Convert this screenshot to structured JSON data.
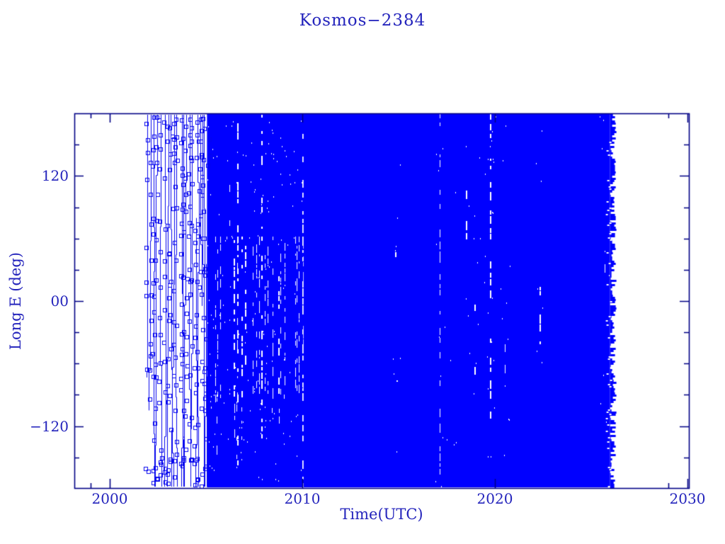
{
  "page": {
    "background": "#ffffff"
  },
  "chart_data": {
    "type": "scatter",
    "title": "Kosmos−2384",
    "xlabel": "Time(UTC)",
    "ylabel": "Long E (deg)",
    "description": "Sub-satellite longitude (deg E) versus time for Kosmos-2384; dense vertical coverage of all longitudes −180..180 from drifting orbit, plotted as small open-square markers that merge into a solid mass.",
    "marker": "open-square",
    "colors": {
      "data": "#0000ff",
      "track": "#0404ee",
      "axis": "#000085",
      "text": "#2424bc",
      "background": "#ffffff"
    },
    "x_axis": {
      "range": [
        1998.2,
        2030.1
      ],
      "major_ticks": [
        2000,
        2010,
        2020,
        2030
      ],
      "tick_labels": [
        "2000",
        "2010",
        "2020",
        "2030"
      ],
      "minor_ticks": [
        1999,
        2029
      ],
      "grid": false
    },
    "y_axis": {
      "range": [
        -180,
        180
      ],
      "major_ticks": [
        120,
        0,
        -120
      ],
      "tick_labels": [
        "120",
        "00",
        "−120"
      ],
      "minor_ticks": [
        150,
        90,
        60,
        30,
        -30,
        -60,
        -90,
        -150
      ],
      "grid": false
    },
    "coverage_eras": [
      {
        "name": "sparse-drift-tracks",
        "t_start": 2001.95,
        "t_end": 2005.05,
        "lon_range": [
          -180,
          180
        ],
        "style": "thin near-vertical wrapped drift tracks with open-square markers",
        "track_times": [
          2002.0,
          2002.1,
          2002.3,
          2002.45,
          2002.6,
          2002.85,
          2003.05,
          2003.15,
          2003.35,
          2003.5,
          2003.7,
          2003.8,
          2003.95,
          2004.15,
          2004.3,
          2004.5,
          2004.6,
          2004.7,
          2004.8,
          2004.9,
          2005.0
        ]
      },
      {
        "name": "dense-drift",
        "t_start": 2005.05,
        "t_end": 2010.1,
        "lon_range": [
          -180,
          180
        ],
        "style": "near-solid with vertical white striping",
        "stripe_band_lon": [
          62,
          -90
        ],
        "long_gap_times": [
          2006.6,
          2007.85,
          2010.0
        ]
      },
      {
        "name": "continuous-solid",
        "t_start": 2010.1,
        "t_end": 2026.2,
        "lon_range": [
          -180,
          180
        ],
        "style": "solid coverage with occasional thin outage streaks, ragged end"
      }
    ],
    "data_gaps": [
      {
        "t": 2014.8,
        "lon_from": 65,
        "lon_to": 35,
        "density": 0.3
      },
      {
        "t": 2017.15,
        "lon_from": 180,
        "lon_to": -180,
        "density": 0.55
      },
      {
        "t": 2017.8,
        "lon_from": 180,
        "lon_to": 120,
        "density": 0.3
      },
      {
        "t": 2018.5,
        "lon_from": 120,
        "lon_to": 30,
        "density": 0.25
      },
      {
        "t": 2018.95,
        "lon_from": 0,
        "lon_to": -70,
        "density": 0.3
      },
      {
        "t": 2019.75,
        "lon_from": 180,
        "lon_to": -40,
        "density": 0.65
      },
      {
        "t": 2019.75,
        "lon_from": -40,
        "lon_to": -180,
        "density": 0.3
      },
      {
        "t": 2020.5,
        "lon_from": -10,
        "lon_to": -80,
        "density": 0.25
      },
      {
        "t": 2022.3,
        "lon_from": 45,
        "lon_to": -40,
        "density": 0.25
      },
      {
        "t": 2025.7,
        "lon_from": 90,
        "lon_to": 10,
        "density": 0.2
      }
    ]
  }
}
